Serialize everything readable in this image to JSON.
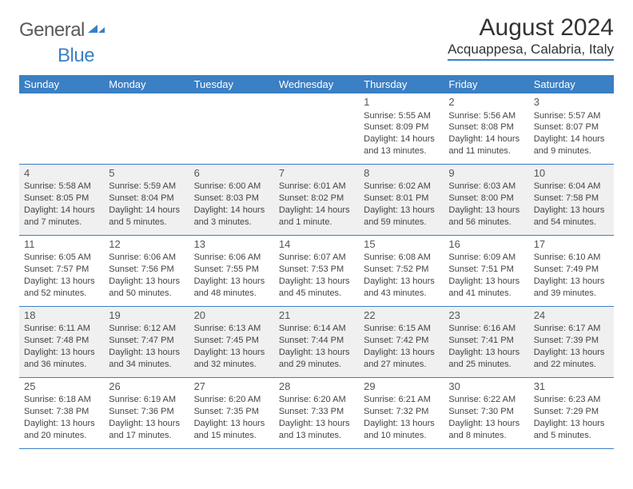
{
  "logo": {
    "general": "General",
    "blue": "Blue"
  },
  "title": "August 2024",
  "location": "Acquappesa, Calabria, Italy",
  "colors": {
    "accent": "#3b7fc4",
    "header_text": "#ffffff",
    "body_text": "#444444",
    "shade_bg": "#f0f0f0",
    "page_bg": "#ffffff"
  },
  "weekdays": [
    "Sunday",
    "Monday",
    "Tuesday",
    "Wednesday",
    "Thursday",
    "Friday",
    "Saturday"
  ],
  "weeks": [
    {
      "shade": false,
      "days": [
        null,
        null,
        null,
        null,
        {
          "n": "1",
          "sr": "5:55 AM",
          "ss": "8:09 PM",
          "dl": "14 hours and 13 minutes."
        },
        {
          "n": "2",
          "sr": "5:56 AM",
          "ss": "8:08 PM",
          "dl": "14 hours and 11 minutes."
        },
        {
          "n": "3",
          "sr": "5:57 AM",
          "ss": "8:07 PM",
          "dl": "14 hours and 9 minutes."
        }
      ]
    },
    {
      "shade": true,
      "days": [
        {
          "n": "4",
          "sr": "5:58 AM",
          "ss": "8:05 PM",
          "dl": "14 hours and 7 minutes."
        },
        {
          "n": "5",
          "sr": "5:59 AM",
          "ss": "8:04 PM",
          "dl": "14 hours and 5 minutes."
        },
        {
          "n": "6",
          "sr": "6:00 AM",
          "ss": "8:03 PM",
          "dl": "14 hours and 3 minutes."
        },
        {
          "n": "7",
          "sr": "6:01 AM",
          "ss": "8:02 PM",
          "dl": "14 hours and 1 minute."
        },
        {
          "n": "8",
          "sr": "6:02 AM",
          "ss": "8:01 PM",
          "dl": "13 hours and 59 minutes."
        },
        {
          "n": "9",
          "sr": "6:03 AM",
          "ss": "8:00 PM",
          "dl": "13 hours and 56 minutes."
        },
        {
          "n": "10",
          "sr": "6:04 AM",
          "ss": "7:58 PM",
          "dl": "13 hours and 54 minutes."
        }
      ]
    },
    {
      "shade": false,
      "days": [
        {
          "n": "11",
          "sr": "6:05 AM",
          "ss": "7:57 PM",
          "dl": "13 hours and 52 minutes."
        },
        {
          "n": "12",
          "sr": "6:06 AM",
          "ss": "7:56 PM",
          "dl": "13 hours and 50 minutes."
        },
        {
          "n": "13",
          "sr": "6:06 AM",
          "ss": "7:55 PM",
          "dl": "13 hours and 48 minutes."
        },
        {
          "n": "14",
          "sr": "6:07 AM",
          "ss": "7:53 PM",
          "dl": "13 hours and 45 minutes."
        },
        {
          "n": "15",
          "sr": "6:08 AM",
          "ss": "7:52 PM",
          "dl": "13 hours and 43 minutes."
        },
        {
          "n": "16",
          "sr": "6:09 AM",
          "ss": "7:51 PM",
          "dl": "13 hours and 41 minutes."
        },
        {
          "n": "17",
          "sr": "6:10 AM",
          "ss": "7:49 PM",
          "dl": "13 hours and 39 minutes."
        }
      ]
    },
    {
      "shade": true,
      "days": [
        {
          "n": "18",
          "sr": "6:11 AM",
          "ss": "7:48 PM",
          "dl": "13 hours and 36 minutes."
        },
        {
          "n": "19",
          "sr": "6:12 AM",
          "ss": "7:47 PM",
          "dl": "13 hours and 34 minutes."
        },
        {
          "n": "20",
          "sr": "6:13 AM",
          "ss": "7:45 PM",
          "dl": "13 hours and 32 minutes."
        },
        {
          "n": "21",
          "sr": "6:14 AM",
          "ss": "7:44 PM",
          "dl": "13 hours and 29 minutes."
        },
        {
          "n": "22",
          "sr": "6:15 AM",
          "ss": "7:42 PM",
          "dl": "13 hours and 27 minutes."
        },
        {
          "n": "23",
          "sr": "6:16 AM",
          "ss": "7:41 PM",
          "dl": "13 hours and 25 minutes."
        },
        {
          "n": "24",
          "sr": "6:17 AM",
          "ss": "7:39 PM",
          "dl": "13 hours and 22 minutes."
        }
      ]
    },
    {
      "shade": false,
      "days": [
        {
          "n": "25",
          "sr": "6:18 AM",
          "ss": "7:38 PM",
          "dl": "13 hours and 20 minutes."
        },
        {
          "n": "26",
          "sr": "6:19 AM",
          "ss": "7:36 PM",
          "dl": "13 hours and 17 minutes."
        },
        {
          "n": "27",
          "sr": "6:20 AM",
          "ss": "7:35 PM",
          "dl": "13 hours and 15 minutes."
        },
        {
          "n": "28",
          "sr": "6:20 AM",
          "ss": "7:33 PM",
          "dl": "13 hours and 13 minutes."
        },
        {
          "n": "29",
          "sr": "6:21 AM",
          "ss": "7:32 PM",
          "dl": "13 hours and 10 minutes."
        },
        {
          "n": "30",
          "sr": "6:22 AM",
          "ss": "7:30 PM",
          "dl": "13 hours and 8 minutes."
        },
        {
          "n": "31",
          "sr": "6:23 AM",
          "ss": "7:29 PM",
          "dl": "13 hours and 5 minutes."
        }
      ]
    }
  ],
  "labels": {
    "sunrise": "Sunrise:",
    "sunset": "Sunset:",
    "daylight": "Daylight:"
  }
}
